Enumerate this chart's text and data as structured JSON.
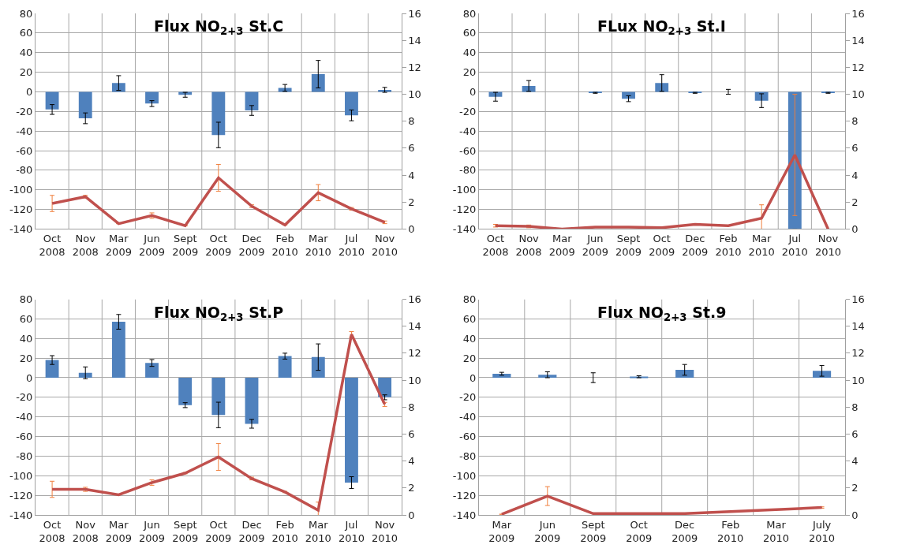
{
  "chart_data": [
    {
      "type": "bar",
      "title": "Flux NO$_{2+3}$ St.C",
      "categories": [
        "Oct\n2008",
        "Nov\n2008",
        "Mar\n2009",
        "Jun\n2009",
        "Sept\n2009",
        "Oct\n2009",
        "Dec\n2009",
        "Feb\n2010",
        "Mar\n2010",
        "Jul\n2010",
        "Nov\n2010"
      ],
      "ylim": [
        -140,
        80
      ],
      "yticks": [
        -140,
        -120,
        -100,
        -80,
        -60,
        -40,
        -20,
        0,
        20,
        40,
        60,
        80
      ],
      "y2lim": [
        0,
        16
      ],
      "y2ticks": [
        0,
        2,
        4,
        6,
        8,
        10,
        12,
        14,
        16
      ],
      "grid": true,
      "series": [
        {
          "color": "#4f81bd",
          "values": [
            -18,
            -27,
            9,
            -12,
            -3,
            -44,
            -19,
            4,
            18,
            -24,
            2
          ],
          "errors": [
            5,
            5.5,
            7.5,
            3,
            2.5,
            13,
            5,
            3.5,
            14,
            5.5,
            2.5
          ]
        },
        {
          "type": "line",
          "axis": "y2",
          "color": "#c0504d",
          "values": [
            1.9,
            2.4,
            0.4,
            1.0,
            0.25,
            3.8,
            1.7,
            0.3,
            2.7,
            1.5,
            0.5
          ],
          "errors": [
            0.6,
            0.1,
            null,
            0.2,
            null,
            1.0,
            0.1,
            null,
            0.6,
            0.1,
            0.1
          ]
        }
      ]
    },
    {
      "type": "bar",
      "title": "FLux NO$_{2+3}$ St.I",
      "categories": [
        "Oct\n2008",
        "Nov\n2008",
        "Mar\n2009",
        "Jun\n2009",
        "Sept\n2009",
        "Oct\n2009",
        "Dec\n2009",
        "Feb\n2010",
        "Mar\n2010",
        "Jul\n2010",
        "Nov\n2010"
      ],
      "ylim": [
        -140,
        80
      ],
      "yticks": [
        -140,
        -120,
        -100,
        -80,
        -60,
        -40,
        -20,
        0,
        20,
        40,
        60,
        80
      ],
      "y2lim": [
        0,
        16
      ],
      "y2ticks": [
        0,
        2,
        4,
        6,
        8,
        10,
        12,
        14,
        16
      ],
      "grid": true,
      "series": [
        {
          "color": "#4f81bd",
          "values": [
            -5,
            6,
            null,
            -1,
            -7,
            9,
            -1,
            0,
            -9,
            -140,
            -1
          ],
          "errors": [
            4.5,
            5.5,
            null,
            0.5,
            3,
            8.5,
            0.5,
            2.5,
            7,
            null,
            0.5
          ]
        },
        {
          "type": "line",
          "axis": "y2",
          "color": "#c0504d",
          "values": [
            0.25,
            0.2,
            0.0,
            0.15,
            0.15,
            0.1,
            0.35,
            0.25,
            0.8,
            5.5,
            0.0
          ],
          "errors": [
            0.1,
            0.1,
            null,
            null,
            null,
            null,
            null,
            null,
            1.0,
            4.5,
            null
          ]
        }
      ]
    },
    {
      "type": "bar",
      "title": "Flux NO$_{2+3}$ St.P",
      "categories": [
        "Oct\n2008",
        "Nov\n2008",
        "Mar\n2009",
        "Jun\n2009",
        "Sept\n2009",
        "Oct\n2009",
        "Dec\n2009",
        "Feb\n2010",
        "Mar\n2010",
        "Jul\n2010",
        "Nov\n2010"
      ],
      "ylim": [
        -140,
        80
      ],
      "yticks": [
        -140,
        -120,
        -100,
        -80,
        -60,
        -40,
        -20,
        0,
        20,
        40,
        60,
        80
      ],
      "y2lim": [
        0,
        16
      ],
      "y2ticks": [
        0,
        2,
        4,
        6,
        8,
        10,
        12,
        14,
        16
      ],
      "grid": true,
      "series": [
        {
          "color": "#4f81bd",
          "values": [
            18,
            5,
            57,
            15,
            -28,
            -38,
            -47,
            22,
            21,
            -107,
            -20
          ],
          "errors": [
            4.5,
            6,
            7.5,
            3.5,
            2.5,
            13,
            4.5,
            3,
            13.5,
            6,
            2.5
          ]
        },
        {
          "type": "line",
          "axis": "y2",
          "color": "#c0504d",
          "values": [
            1.9,
            1.9,
            1.5,
            2.4,
            3.1,
            4.3,
            2.7,
            1.7,
            0.35,
            13.4,
            8.2
          ],
          "errors": [
            0.6,
            0.15,
            null,
            0.2,
            0.05,
            1.0,
            0.1,
            0.05,
            0.6,
            0.2,
            0.15
          ]
        }
      ]
    },
    {
      "type": "bar",
      "title": "Flux NO$_{2+3}$ St.9",
      "categories": [
        "Mar\n2009",
        "Jun\n2009",
        "Sept\n2009",
        "Oct\n2009",
        "Dec\n2009",
        "Feb\n2010",
        "Mar\n2010",
        "July\n2010"
      ],
      "ylim": [
        -140,
        80
      ],
      "yticks": [
        -140,
        -120,
        -100,
        -80,
        -60,
        -40,
        -20,
        0,
        20,
        40,
        60,
        80
      ],
      "y2lim": [
        0,
        16
      ],
      "y2ticks": [
        0,
        2,
        4,
        6,
        8,
        10,
        12,
        14,
        16
      ],
      "grid": true,
      "series": [
        {
          "color": "#4f81bd",
          "values": [
            4,
            3,
            0,
            1,
            8,
            null,
            null,
            7
          ],
          "errors": [
            1.5,
            3,
            5,
            1,
            5.5,
            null,
            null,
            5.5
          ]
        },
        {
          "type": "line",
          "axis": "y2",
          "color": "#c0504d",
          "values": [
            0.05,
            1.4,
            0.1,
            0.1,
            0.1,
            null,
            null,
            0.55
          ],
          "errors": [
            null,
            0.7,
            null,
            null,
            null,
            null,
            null,
            0.05
          ]
        }
      ]
    }
  ]
}
